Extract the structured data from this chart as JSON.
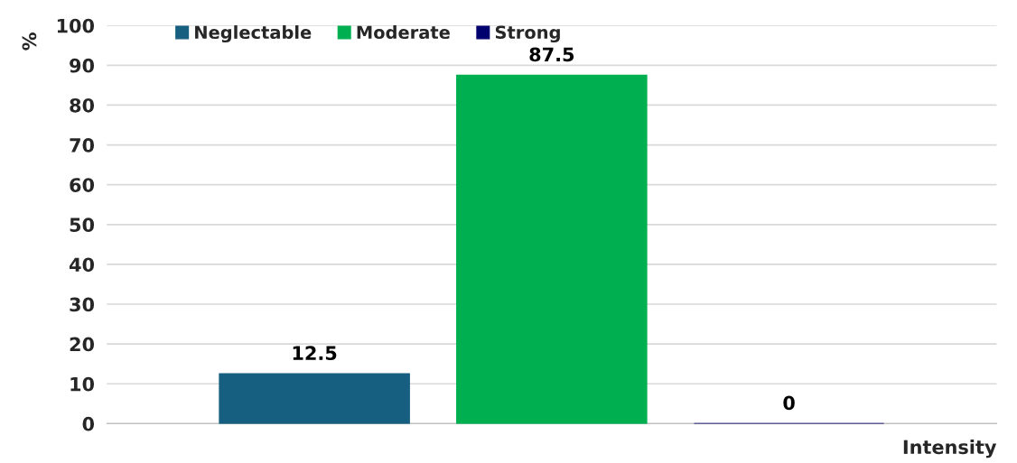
{
  "chart_data": {
    "type": "bar",
    "categories": [
      null
    ],
    "ylabel": "%",
    "xlabel": "Intensity",
    "ylim": [
      0,
      100
    ],
    "yticks": [
      0,
      10,
      20,
      30,
      40,
      50,
      60,
      70,
      80,
      90,
      100
    ],
    "grid": "y",
    "legend": "top left",
    "data_labels": true,
    "series": [
      {
        "name": "Neglectable",
        "color": "#175f80",
        "values": [
          12.5
        ]
      },
      {
        "name": "Moderate",
        "color": "#00b050",
        "values": [
          87.5
        ]
      },
      {
        "name": "Strong",
        "color": "#00006e",
        "values": [
          0
        ]
      }
    ]
  }
}
